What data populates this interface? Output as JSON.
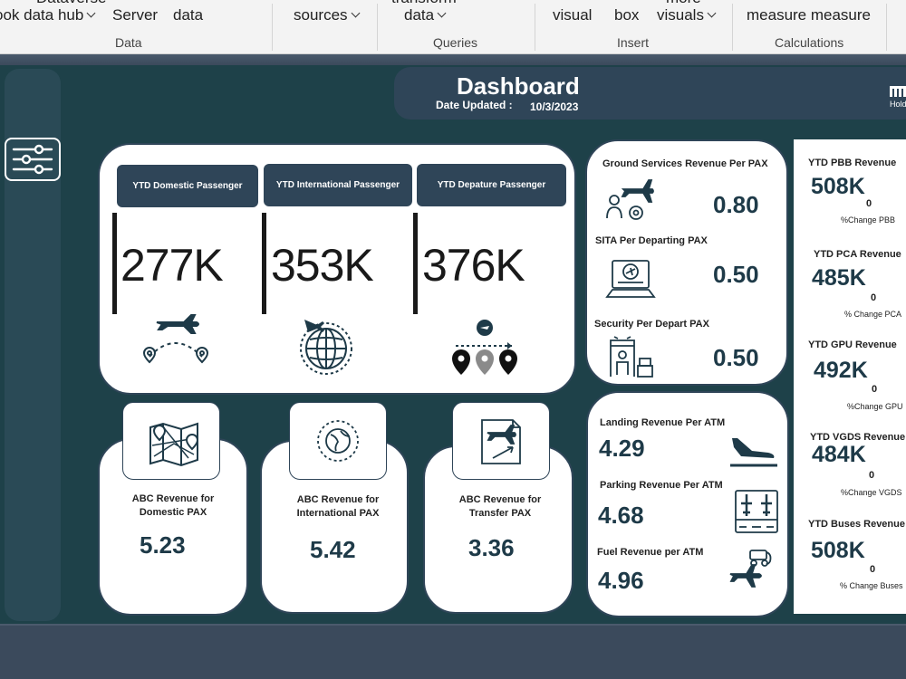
{
  "ribbon": {
    "top_cut": [
      "Dataverse",
      "transform",
      "more"
    ],
    "items": [
      {
        "label": "ook data hub",
        "chevron": true
      },
      {
        "label": "Server",
        "chevron": false
      },
      {
        "label": "data",
        "chevron": false
      },
      {
        "label": "sources",
        "chevron": true
      },
      {
        "label": "data",
        "chevron": true
      },
      {
        "label": "visual",
        "chevron": false
      },
      {
        "label": "box",
        "chevron": false
      },
      {
        "label": "visuals",
        "chevron": true
      },
      {
        "label": "measure measure",
        "chevron": false
      }
    ],
    "groups": [
      "Data",
      "Queries",
      "Insert",
      "Calculations"
    ]
  },
  "header": {
    "title": "Dashboard",
    "date_label": "Date Updated :",
    "date_value": "10/3/2023",
    "logo_text": "Hold"
  },
  "passengers": [
    {
      "label": "YTD Domestic Passenger",
      "value": "277K",
      "icon": "plane-route-icon"
    },
    {
      "label": "YTD International Passenger",
      "value": "353K",
      "icon": "globe-icon"
    },
    {
      "label": "YTD Depature Passenger",
      "value": "376K",
      "icon": "map-pins-icon"
    }
  ],
  "per_pax": [
    {
      "label": "Ground Services Revenue Per PAX",
      "value": "0.80",
      "icon": "ground-services-icon"
    },
    {
      "label": "SITA Per Departing PAX",
      "value": "0.50",
      "icon": "laptop-plane-icon"
    },
    {
      "label": "Security Per Depart PAX",
      "value": "0.50",
      "icon": "security-gate-icon"
    }
  ],
  "abc": [
    {
      "label_line1": "ABC Revenue for",
      "label_line2": "Domestic PAX",
      "value": "5.23",
      "icon": "map-icon"
    },
    {
      "label_line1": "ABC Revenue for",
      "label_line2": "International PAX",
      "value": "5.42",
      "icon": "globe-ring-icon"
    },
    {
      "label_line1": "ABC Revenue for",
      "label_line2": "Transfer PAX",
      "value": "3.36",
      "icon": "transfer-doc-icon"
    }
  ],
  "per_atm": [
    {
      "label": "Landing Revenue Per ATM",
      "value": "4.29",
      "icon": "landing-icon"
    },
    {
      "label": "Parking Revenue Per ATM",
      "value": "4.68",
      "icon": "parking-icon"
    },
    {
      "label": "Fuel Revenue per ATM",
      "value": "4.96",
      "icon": "fuel-icon"
    }
  ],
  "ytd": [
    {
      "label": "YTD PBB Revenue",
      "value": "508K",
      "change": "0",
      "sub": "%Change PBB"
    },
    {
      "label": "YTD PCA Revenue",
      "value": "485K",
      "change": "0",
      "sub": "% Change PCA"
    },
    {
      "label": "YTD GPU Revenue",
      "value": "492K",
      "change": "0",
      "sub": "%Change GPU"
    },
    {
      "label": "YTD VGDS Revenue",
      "value": "484K",
      "change": "0",
      "sub": "%Change VGDS"
    },
    {
      "label": "YTD Buses Revenue",
      "value": "508K",
      "change": "0",
      "sub": "% Change Buses"
    }
  ]
}
